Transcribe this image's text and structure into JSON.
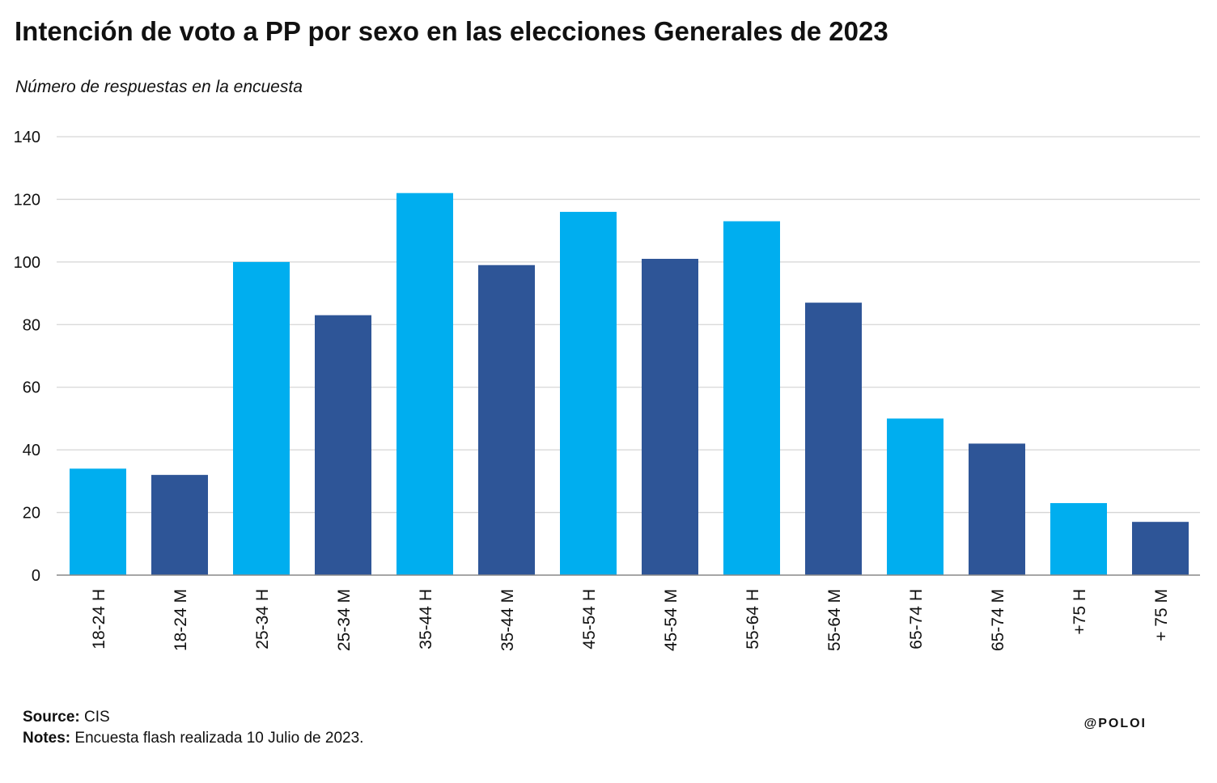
{
  "header": {
    "title": "Intención de voto a PP por sexo en las elecciones Generales de 2023",
    "subtitle": "Número de respuestas en la encuesta"
  },
  "footer": {
    "source_label": "Source:",
    "source_value": "CIS",
    "notes_label": "Notes:",
    "notes_value": "Encuesta flash realizada 10 Julio de 2023.",
    "handle": "@POLOI"
  },
  "colors": {
    "H": "#00AEEF",
    "M": "#2E5597",
    "grid": "#d6d6d6",
    "axis": "#888888"
  },
  "chart_data": {
    "type": "bar",
    "title": "Intención de voto a PP por sexo en las elecciones Generales de 2023",
    "subtitle": "Número de respuestas en la encuesta",
    "xlabel": "",
    "ylabel": "",
    "categories": [
      "18-24 H",
      "18-24 M",
      "25-34 H",
      "25-34 M",
      "35-44 H",
      "35-44 M",
      "45-54 H",
      "45-54 M",
      "55-64 H",
      "55-64 M",
      "65-74 H",
      "65-74 M",
      "+75 H",
      "+ 75 M"
    ],
    "values": [
      34,
      32,
      100,
      83,
      122,
      99,
      116,
      101,
      113,
      87,
      50,
      42,
      23,
      17
    ],
    "bar_colors": [
      "#00AEEF",
      "#2E5597",
      "#00AEEF",
      "#2E5597",
      "#00AEEF",
      "#2E5597",
      "#00AEEF",
      "#2E5597",
      "#00AEEF",
      "#2E5597",
      "#00AEEF",
      "#2E5597",
      "#00AEEF",
      "#2E5597"
    ],
    "ylim": [
      0,
      140
    ],
    "yticks": [
      0,
      20,
      40,
      60,
      80,
      100,
      120,
      140
    ],
    "grid": true,
    "legend": "none"
  }
}
